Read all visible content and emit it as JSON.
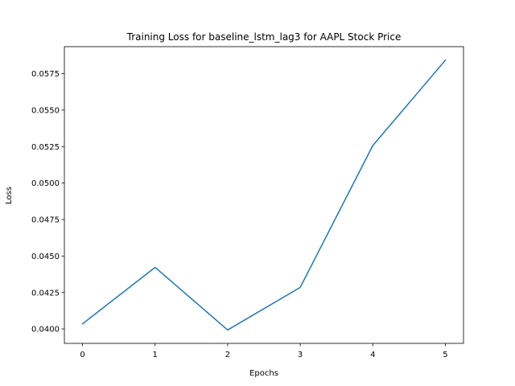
{
  "chart_data": {
    "type": "line",
    "title": "Training Loss for baseline_lstm_lag3 for AAPL Stock Price",
    "xlabel": "Epochs",
    "ylabel": "Loss",
    "x": [
      0,
      1,
      2,
      3,
      4,
      5
    ],
    "series": [
      {
        "values": [
          0.04035,
          0.04422,
          0.03993,
          0.04285,
          0.05257,
          0.05842
        ],
        "color": "#1f77b4"
      }
    ],
    "xlim": [
      -0.25,
      5.25
    ],
    "ylim": [
      0.03901,
      0.05935
    ],
    "xticks": [
      0,
      1,
      2,
      3,
      4,
      5
    ],
    "yticks": [
      0.04,
      0.0425,
      0.045,
      0.0475,
      0.05,
      0.0525,
      0.055,
      0.0575
    ],
    "ytick_labels": [
      "0.0400",
      "0.0425",
      "0.0450",
      "0.0475",
      "0.0500",
      "0.0525",
      "0.0550",
      "0.0575"
    ],
    "grid": false,
    "legend": "none"
  }
}
